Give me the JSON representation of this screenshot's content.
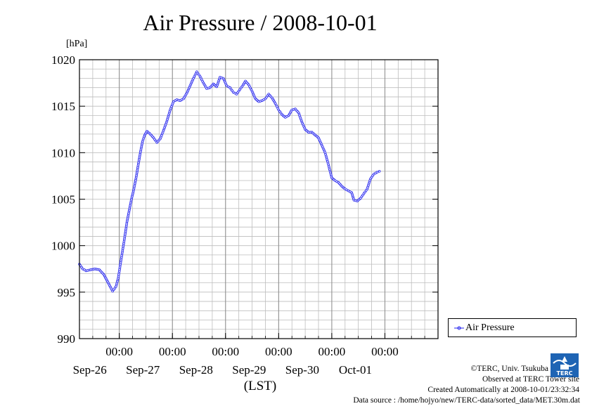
{
  "chart_data": {
    "type": "line",
    "title": "Air Pressure / 2008-10-01",
    "unit_label": "[hPa]",
    "xlabel": "(LST)",
    "ylim": [
      990,
      1020
    ],
    "yticks": [
      990,
      995,
      1000,
      1005,
      1010,
      1015,
      1020
    ],
    "xlim": [
      "2008-09-25T06:00",
      "2008-10-02T00:00"
    ],
    "xticks": [
      {
        "time": "2008-09-26T00:00",
        "time_label": "00:00",
        "date_label": "Sep-26"
      },
      {
        "time": "2008-09-27T00:00",
        "time_label": "00:00",
        "date_label": "Sep-27"
      },
      {
        "time": "2008-09-28T00:00",
        "time_label": "00:00",
        "date_label": "Sep-28"
      },
      {
        "time": "2008-09-29T00:00",
        "time_label": "00:00",
        "date_label": "Sep-29"
      },
      {
        "time": "2008-09-30T00:00",
        "time_label": "00:00",
        "date_label": "Sep-30"
      },
      {
        "time": "2008-10-01T00:00",
        "time_label": "00:00",
        "date_label": "Oct-01"
      }
    ],
    "grid": true,
    "legend_position": "right",
    "series": [
      {
        "name": "Air Pressure",
        "color": "#2222ee",
        "marker": "circle",
        "points": [
          [
            "2008-09-25T06:00",
            998.0
          ],
          [
            "2008-09-25T07:30",
            997.5
          ],
          [
            "2008-09-25T09:00",
            997.3
          ],
          [
            "2008-09-25T11:00",
            997.4
          ],
          [
            "2008-09-25T13:00",
            997.5
          ],
          [
            "2008-09-25T15:00",
            997.4
          ],
          [
            "2008-09-25T17:00",
            996.9
          ],
          [
            "2008-09-25T19:00",
            996.0
          ],
          [
            "2008-09-25T21:00",
            995.1
          ],
          [
            "2008-09-25T22:30",
            995.6
          ],
          [
            "2008-09-25T23:30",
            996.5
          ],
          [
            "2008-09-26T00:30",
            998.0
          ],
          [
            "2008-09-26T01:30",
            999.5
          ],
          [
            "2008-09-26T02:30",
            1001.0
          ],
          [
            "2008-09-26T03:30",
            1002.6
          ],
          [
            "2008-09-26T04:30",
            1003.8
          ],
          [
            "2008-09-26T05:30",
            1005.0
          ],
          [
            "2008-09-26T06:30",
            1006.0
          ],
          [
            "2008-09-26T07:30",
            1007.2
          ],
          [
            "2008-09-26T08:30",
            1008.6
          ],
          [
            "2008-09-26T09:30",
            1010.0
          ],
          [
            "2008-09-26T10:30",
            1011.2
          ],
          [
            "2008-09-26T11:30",
            1011.9
          ],
          [
            "2008-09-26T12:30",
            1012.3
          ],
          [
            "2008-09-26T14:00",
            1012.0
          ],
          [
            "2008-09-26T15:30",
            1011.6
          ],
          [
            "2008-09-26T17:00",
            1011.1
          ],
          [
            "2008-09-26T18:30",
            1011.5
          ],
          [
            "2008-09-26T20:00",
            1012.4
          ],
          [
            "2008-09-26T21:30",
            1013.4
          ],
          [
            "2008-09-26T23:00",
            1014.6
          ],
          [
            "2008-09-27T00:30",
            1015.5
          ],
          [
            "2008-09-27T02:00",
            1015.7
          ],
          [
            "2008-09-27T03:30",
            1015.6
          ],
          [
            "2008-09-27T05:00",
            1015.8
          ],
          [
            "2008-09-27T06:30",
            1016.4
          ],
          [
            "2008-09-27T08:00",
            1017.2
          ],
          [
            "2008-09-27T09:30",
            1018.0
          ],
          [
            "2008-09-27T11:00",
            1018.7
          ],
          [
            "2008-09-27T12:30",
            1018.2
          ],
          [
            "2008-09-27T14:00",
            1017.5
          ],
          [
            "2008-09-27T15:30",
            1016.9
          ],
          [
            "2008-09-27T17:00",
            1017.0
          ],
          [
            "2008-09-27T18:30",
            1017.4
          ],
          [
            "2008-09-27T20:00",
            1017.1
          ],
          [
            "2008-09-27T21:30",
            1018.1
          ],
          [
            "2008-09-27T23:00",
            1018.0
          ],
          [
            "2008-09-28T00:30",
            1017.2
          ],
          [
            "2008-09-28T02:00",
            1017.0
          ],
          [
            "2008-09-28T03:30",
            1016.5
          ],
          [
            "2008-09-28T05:00",
            1016.3
          ],
          [
            "2008-09-28T06:30",
            1016.8
          ],
          [
            "2008-09-28T08:00",
            1017.3
          ],
          [
            "2008-09-28T09:00",
            1017.7
          ],
          [
            "2008-09-28T10:30",
            1017.3
          ],
          [
            "2008-09-28T12:00",
            1016.6
          ],
          [
            "2008-09-28T13:30",
            1015.8
          ],
          [
            "2008-09-28T15:00",
            1015.5
          ],
          [
            "2008-09-28T16:30",
            1015.6
          ],
          [
            "2008-09-28T18:00",
            1015.8
          ],
          [
            "2008-09-28T19:30",
            1016.3
          ],
          [
            "2008-09-28T21:00",
            1015.9
          ],
          [
            "2008-09-28T22:30",
            1015.3
          ],
          [
            "2008-09-29T00:00",
            1014.6
          ],
          [
            "2008-09-29T01:30",
            1014.1
          ],
          [
            "2008-09-29T03:00",
            1013.8
          ],
          [
            "2008-09-29T04:30",
            1014.0
          ],
          [
            "2008-09-29T06:00",
            1014.6
          ],
          [
            "2008-09-29T07:30",
            1014.7
          ],
          [
            "2008-09-29T09:00",
            1014.3
          ],
          [
            "2008-09-29T10:30",
            1013.3
          ],
          [
            "2008-09-29T12:00",
            1012.5
          ],
          [
            "2008-09-29T13:30",
            1012.2
          ],
          [
            "2008-09-29T15:00",
            1012.2
          ],
          [
            "2008-09-29T16:30",
            1011.9
          ],
          [
            "2008-09-29T18:00",
            1011.6
          ],
          [
            "2008-09-29T19:30",
            1010.8
          ],
          [
            "2008-09-29T21:00",
            1010.0
          ],
          [
            "2008-09-29T22:30",
            1008.7
          ],
          [
            "2008-09-30T00:00",
            1007.3
          ],
          [
            "2008-09-30T01:30",
            1007.0
          ],
          [
            "2008-09-30T03:00",
            1006.8
          ],
          [
            "2008-09-30T04:30",
            1006.4
          ],
          [
            "2008-09-30T06:00",
            1006.1
          ],
          [
            "2008-09-30T07:30",
            1005.9
          ],
          [
            "2008-09-30T09:00",
            1005.7
          ],
          [
            "2008-09-30T10:00",
            1004.9
          ],
          [
            "2008-09-30T11:30",
            1004.8
          ],
          [
            "2008-09-30T13:00",
            1005.1
          ],
          [
            "2008-09-30T14:30",
            1005.6
          ],
          [
            "2008-09-30T16:00",
            1006.1
          ],
          [
            "2008-09-30T17:30",
            1007.2
          ],
          [
            "2008-09-30T19:00",
            1007.7
          ],
          [
            "2008-09-30T20:30",
            1007.9
          ],
          [
            "2008-09-30T21:30",
            1008.0
          ]
        ]
      }
    ]
  },
  "credits": {
    "copyright": "©TERC, Univ. Tsukuba",
    "observed": "Observed at TERC Tower site",
    "created": "Created Automatically at 2008-10-01/23:32:34",
    "source": "Data source : /home/hojyo/new/TERC-data/sorted_data/MET.30m.dat"
  },
  "logo": {
    "name": "terc-logo",
    "text": "TERC",
    "color": "#1e64b4"
  }
}
